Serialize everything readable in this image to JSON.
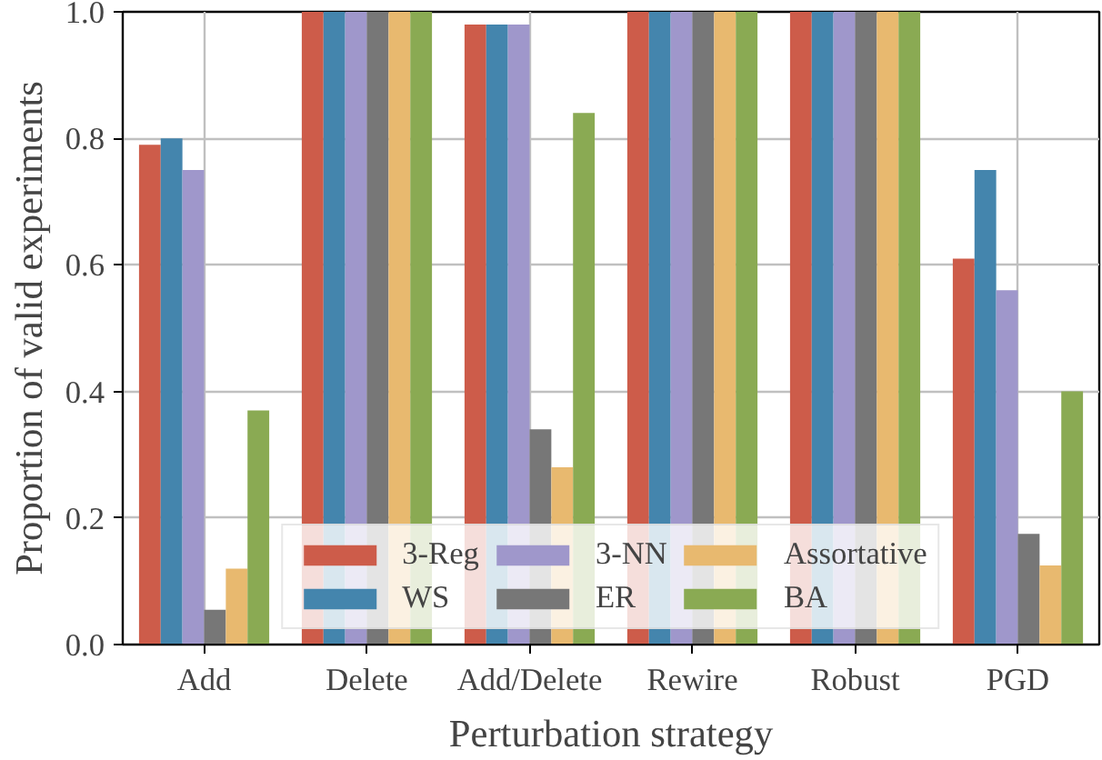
{
  "chart_data": {
    "type": "bar",
    "xlabel": "Perturbation strategy",
    "ylabel": "Proportion of valid experiments",
    "categories": [
      "Add",
      "Delete",
      "Add/Delete",
      "Rewire",
      "Robust",
      "PGD"
    ],
    "series": [
      {
        "name": "3-Reg",
        "color": "#cd5c4a",
        "values": [
          0.79,
          1.0,
          0.98,
          1.0,
          1.0,
          0.61
        ]
      },
      {
        "name": "WS",
        "color": "#4485ad",
        "values": [
          0.8,
          1.0,
          0.98,
          1.0,
          1.0,
          0.75
        ]
      },
      {
        "name": "3-NN",
        "color": "#9f97cb",
        "values": [
          0.75,
          1.0,
          0.98,
          1.0,
          1.0,
          0.56
        ]
      },
      {
        "name": "ER",
        "color": "#777777",
        "values": [
          0.055,
          1.0,
          0.34,
          1.0,
          1.0,
          0.175
        ]
      },
      {
        "name": "Assortative",
        "color": "#e8b96f",
        "values": [
          0.12,
          1.0,
          0.28,
          1.0,
          1.0,
          0.125
        ]
      },
      {
        "name": "BA",
        "color": "#8aaa53",
        "values": [
          0.37,
          1.0,
          0.84,
          1.0,
          1.0,
          0.4
        ]
      }
    ],
    "ylim": [
      0,
      1.0
    ],
    "yticks": [
      {
        "value": 0,
        "label": "0.0"
      },
      {
        "value": 0.2,
        "label": "0.2"
      },
      {
        "value": 0.4,
        "label": "0.4"
      },
      {
        "value": 0.6,
        "label": "0.6"
      },
      {
        "value": 0.8,
        "label": "0.8"
      },
      {
        "value": 1.0,
        "label": "1.0"
      }
    ],
    "grid": true,
    "legend": "bottom"
  }
}
